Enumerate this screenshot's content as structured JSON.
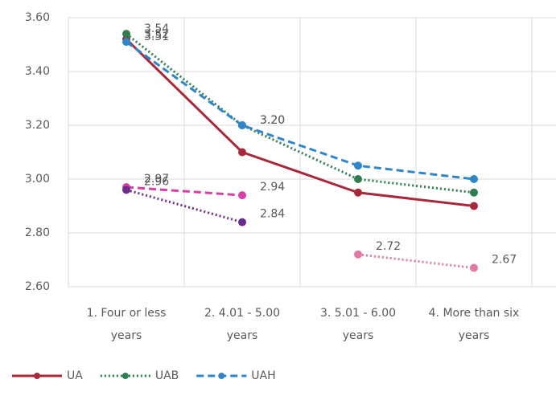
{
  "chart_data": {
    "type": "line",
    "categories": [
      "1. Four or less years",
      "2. 4.01 - 5.00 years",
      "3. 5.01 - 6.00 years",
      "4. More than six years"
    ],
    "series": [
      {
        "name": "UA",
        "color": "#a8283a",
        "style": "solid",
        "values": [
          3.52,
          3.1,
          2.95,
          2.9
        ],
        "value_labels": [
          "3.52",
          null,
          null,
          null
        ]
      },
      {
        "name": "UAB",
        "color": "#2e7d4f",
        "style": "dotted",
        "values": [
          3.54,
          3.2,
          3.0,
          2.95
        ],
        "value_labels": [
          "3.54",
          "3.20",
          null,
          null
        ]
      },
      {
        "name": "UAH",
        "color": "#2e86c8",
        "style": "dashed",
        "values": [
          3.51,
          3.2,
          3.05,
          3.0
        ],
        "value_labels": [
          "3.51",
          "3.20",
          null,
          null
        ]
      },
      {
        "color": "#d63fa6",
        "style": "dashed",
        "values": [
          2.97,
          2.94,
          null,
          null
        ]
      },
      {
        "color": "#6a2c8c",
        "style": "dotted",
        "values": [
          2.96,
          2.84,
          null,
          null
        ]
      },
      {
        "color": "#e07aa8",
        "style": "dotted",
        "values": [
          null,
          null,
          2.72,
          2.67
        ]
      }
    ],
    "ylim": [
      2.6,
      3.6
    ],
    "yticks": [
      {
        "value": 2.6,
        "label": "2.60"
      },
      {
        "value": 2.8,
        "label": "2.80"
      },
      {
        "value": 3.0,
        "label": "3.00"
      },
      {
        "value": 3.2,
        "label": "3.20"
      },
      {
        "value": 3.4,
        "label": "3.40"
      },
      {
        "value": 3.6,
        "label": "3.60"
      }
    ],
    "grid": true,
    "legend": "bottom"
  }
}
